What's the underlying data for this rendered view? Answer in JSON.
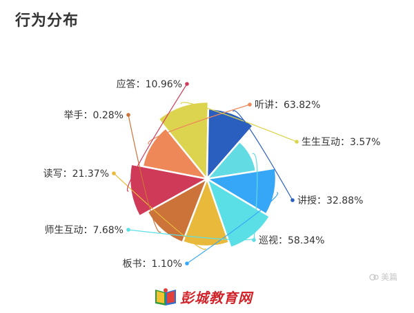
{
  "chart_data": {
    "type": "pie",
    "rose": true,
    "title": "行为分布",
    "slices": [
      {
        "name": "听讲",
        "value": 63.82,
        "label": "听讲：63.82%",
        "color": "#EE8859"
      },
      {
        "name": "生生互动",
        "value": 3.57,
        "label": "生生互动：3.57%",
        "color": "#DCD44E"
      },
      {
        "name": "讲授",
        "value": 32.88,
        "label": "讲授：32.88%",
        "color": "#2B5FBF"
      },
      {
        "name": "巡视",
        "value": 58.34,
        "label": "巡视：58.34%",
        "color": "#62DBE3"
      },
      {
        "name": "板书",
        "value": 1.1,
        "label": "板书：1.10%",
        "color": "#36A6F7"
      },
      {
        "name": "师生互动",
        "value": 7.68,
        "label": "师生互动：7.68%",
        "color": "#5BDFE6"
      },
      {
        "name": "读写",
        "value": 21.37,
        "label": "读写：21.37%",
        "color": "#E8B93B"
      },
      {
        "name": "举手",
        "value": 0.28,
        "label": "举手：0.28%",
        "color": "#CB7338"
      },
      {
        "name": "应答",
        "value": 10.96,
        "label": "应答：10.96%",
        "color": "#CF3A58"
      }
    ]
  },
  "logo": {
    "text": "彭城教育网"
  },
  "watermark": {
    "text": "美篇"
  }
}
